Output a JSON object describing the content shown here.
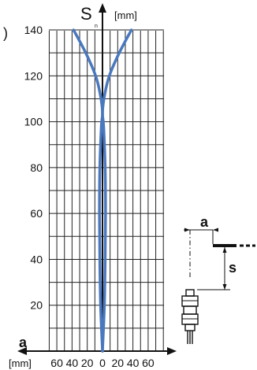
{
  "chart_data": {
    "type": "line",
    "y_axis": {
      "label": "S",
      "label_subscript": "n",
      "unit": "[mm]",
      "range": [
        0,
        145
      ],
      "ticks": [
        20,
        40,
        60,
        80,
        100,
        120,
        140
      ]
    },
    "x_axis": {
      "label": "a",
      "unit": "[mm]",
      "range": [
        -70,
        70
      ],
      "tick_labels": [
        "60",
        "40",
        "20",
        "0",
        "20",
        "40",
        "60"
      ],
      "tick_values": [
        -60,
        -40,
        -20,
        0,
        20,
        40,
        60
      ]
    },
    "grid": true,
    "series": [
      {
        "curve": "sensing-zone",
        "color": "#4a78bf",
        "points_right": [
          [
            0,
            0
          ],
          [
            2.5,
            20
          ],
          [
            3.5,
            40
          ],
          [
            4,
            60
          ],
          [
            3.5,
            80
          ],
          [
            1.5,
            98
          ],
          [
            0,
            104
          ],
          [
            3,
            112
          ],
          [
            9,
            120
          ],
          [
            22,
            130
          ],
          [
            38,
            140
          ]
        ],
        "points_left": [
          [
            0,
            0
          ],
          [
            -2.5,
            20
          ],
          [
            -3.5,
            40
          ],
          [
            -4,
            60
          ],
          [
            -3.5,
            80
          ],
          [
            -1.5,
            98
          ],
          [
            0,
            104
          ],
          [
            -3,
            112
          ],
          [
            -9,
            120
          ],
          [
            -22,
            130
          ],
          [
            -38,
            140
          ]
        ]
      }
    ]
  },
  "inset": {
    "a_label": "a",
    "s_label": "s"
  },
  "header": {
    "left_glyph": ")"
  }
}
